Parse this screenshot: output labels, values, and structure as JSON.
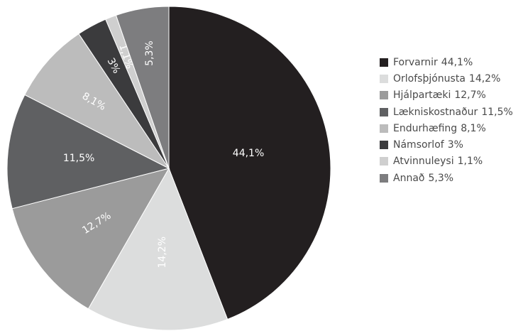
{
  "chart_data": {
    "type": "pie",
    "title": "",
    "start_angle_deg": 0,
    "direction": "clockwise",
    "legend_position": "right",
    "slices": [
      {
        "name": "Forvarnir",
        "value": 44.1,
        "label": "44,1%",
        "color": "#231f20",
        "label_color": "#ffffff"
      },
      {
        "name": "Orlofsþjónusta",
        "value": 14.2,
        "label": "14,2%",
        "color": "#dcdddd",
        "label_color": "#333333"
      },
      {
        "name": "Hjálpartæki",
        "value": 12.7,
        "label": "12,7%",
        "color": "#9b9b9b",
        "label_color": "#ffffff"
      },
      {
        "name": "Lækniskostnaður",
        "value": 11.5,
        "label": "11,5%",
        "color": "#5f6062",
        "label_color": "#ffffff"
      },
      {
        "name": "Endurhæfing",
        "value": 8.1,
        "label": "8,1%",
        "color": "#bcbcbc",
        "label_color": "#333333"
      },
      {
        "name": "Námsorlof",
        "value": 3.0,
        "label": "3%",
        "color": "#3b3b3d",
        "label_color": "#ffffff"
      },
      {
        "name": "Atvinnuleysi",
        "value": 1.1,
        "label": "1,1%",
        "color": "#cfcfcf",
        "label_color": "#ffffff"
      },
      {
        "name": "Annað",
        "value": 5.3,
        "label": "5,3%",
        "color": "#7d7d7f",
        "label_color": "#333333"
      }
    ],
    "legend": [
      {
        "name": "Forvarnir",
        "value_text": "44,1%"
      },
      {
        "name": "Orlofsþjónusta",
        "value_text": "14,2%"
      },
      {
        "name": "Hjálpartæki",
        "value_text": "12,7%"
      },
      {
        "name": "Lækniskostnaður",
        "value_text": "11,5%"
      },
      {
        "name": "Endurhæfing",
        "value_text": "8,1%"
      },
      {
        "name": "Námsorlof",
        "value_text": "3%"
      },
      {
        "name": "Atvinnuleysi",
        "value_text": "1,1%"
      },
      {
        "name": "Annað",
        "value_text": "5,3%"
      }
    ]
  }
}
